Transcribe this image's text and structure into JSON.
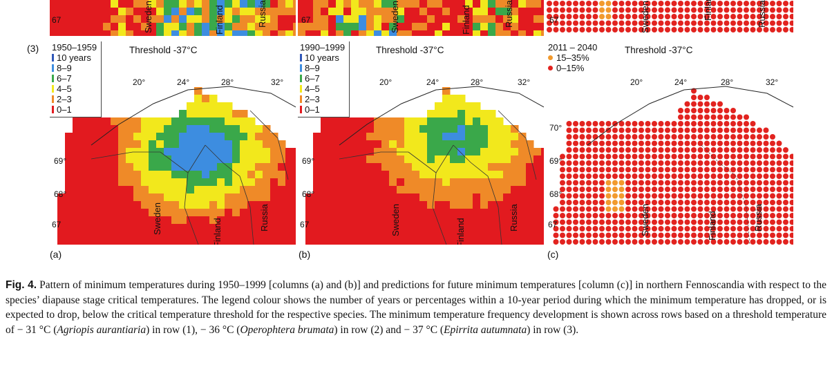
{
  "row_marker": "(3)",
  "panels": [
    {
      "letter": "(a)",
      "period": "1950–1959",
      "threshold": "Threshold -37°C",
      "legend": [
        "10 years",
        "8–9",
        "6–7",
        "4–5",
        "2–3",
        "0–1"
      ],
      "lon_labels": [
        "20°",
        "24°",
        "28°",
        "32°"
      ],
      "lat_labels": [
        "69°",
        "68°",
        "67"
      ],
      "top_lat": "67",
      "countries": [
        "Sweden",
        "Finland",
        "Russia"
      ],
      "top_countries": [
        "Sweden",
        "Finland",
        "Russia"
      ]
    },
    {
      "letter": "(b)",
      "period": "1990–1999",
      "threshold": "Threshold -37°C",
      "legend": [
        "10 years",
        "8–9",
        "6–7",
        "4–5",
        "2–3",
        "0–1"
      ],
      "lon_labels": [
        "20°",
        "24°",
        "28°",
        "32°"
      ],
      "lat_labels": [
        "69°",
        "68°",
        "67"
      ],
      "top_lat": "67",
      "countries": [
        "Sweden",
        "Finland",
        "Russia"
      ],
      "top_countries": [
        "Sweden",
        "Finland",
        "Russia"
      ]
    },
    {
      "letter": "(c)",
      "period": "2011 – 2040",
      "threshold": "Threshold -37°C",
      "legend": [
        "15–35%",
        "0–15%"
      ],
      "lon_labels": [
        "20°",
        "24°",
        "28°",
        "32°"
      ],
      "lat_labels": [
        "70°",
        "69°",
        "68°",
        "67"
      ],
      "top_lat": "67",
      "countries": [
        "Sweden",
        "Finland",
        "Russia"
      ],
      "top_countries": [
        "Sweden",
        "Finland",
        "Russia"
      ]
    }
  ],
  "colors": {
    "c10": "#2f56b8",
    "c89": "#3d8de0",
    "c67": "#3aa84a",
    "c45": "#f2e81c",
    "c23": "#ef8a28",
    "c01": "#e21a1f",
    "dot_orange": "#f29a2e",
    "dot_red": "#e2231f"
  },
  "caption": {
    "fig": "Fig. 4.",
    "seg1": " Pattern of minimum temperatures during 1950–1999 [columns (a) and (b)] and predictions for future minimum temperatures [column (c)] in northern Fennoscandia with respect to the species’ diapause stage critical temperatures. The legend colour shows the number of years or percentages within a 10-year period during which the minimum temperature has dropped, or is expected to drop, below the critical temperature threshold for the respective species. The minimum temperature frequency development is shown across rows based on a threshold temperature of − 31 °C (",
    "sp1": "Agriopis aurantiaria",
    "seg2": ") in row (1), − 36 °C (",
    "sp2": "Operophtera brumata",
    "seg3": ") in row (2) and − 37 °C (",
    "sp3": "Epirrita autumnata",
    "seg4": ") in row (3)."
  }
}
